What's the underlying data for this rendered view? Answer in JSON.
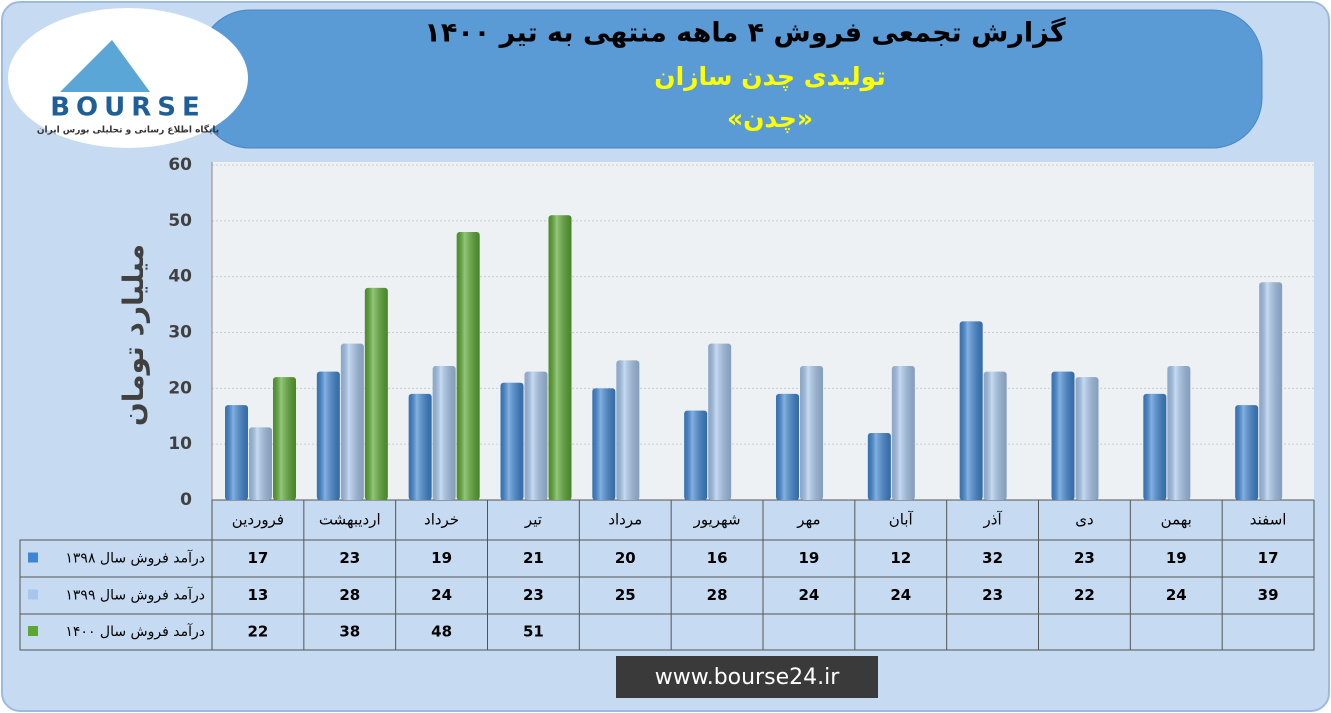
{
  "logo": {
    "mark": "BOURSE",
    "tagline": "پایگاه اطلاع رسانی و تحلیلی بورس ایران"
  },
  "chart_data": {
    "type": "bar",
    "title": "گزارش تجمعی فروش ۴ ماهه منتهی به تیر ۱۴۰۰",
    "subtitle": "تولیدی چدن سازان",
    "subtitle2": "«چدن»",
    "y_label": "میلیارد تومان",
    "categories": [
      "فروردین",
      "اردیبهشت",
      "خرداد",
      "تیر",
      "مرداد",
      "شهریور",
      "مهر",
      "آبان",
      "آذر",
      "دی",
      "بهمن",
      "اسفند"
    ],
    "series": [
      {
        "name": "درآمد فروش سال ۱۳۹۸",
        "color": "#3f86d2",
        "values": [
          17,
          23,
          19,
          21,
          20,
          16,
          19,
          12,
          32,
          23,
          19,
          17
        ]
      },
      {
        "name": "درآمد فروش سال ۱۳۹۹",
        "color": "#a6c6ec",
        "values": [
          13,
          28,
          24,
          23,
          25,
          28,
          24,
          24,
          23,
          22,
          24,
          39
        ]
      },
      {
        "name": "درآمد فروش سال ۱۴۰۰",
        "color": "#5aa832",
        "values": [
          22,
          38,
          48,
          51,
          null,
          null,
          null,
          null,
          null,
          null,
          null,
          null
        ]
      }
    ],
    "ylim": [
      0,
      60
    ],
    "yticks": [
      0,
      10,
      20,
      30,
      40,
      50,
      60
    ],
    "grid": true
  },
  "footer": "www.bourse24.ir"
}
